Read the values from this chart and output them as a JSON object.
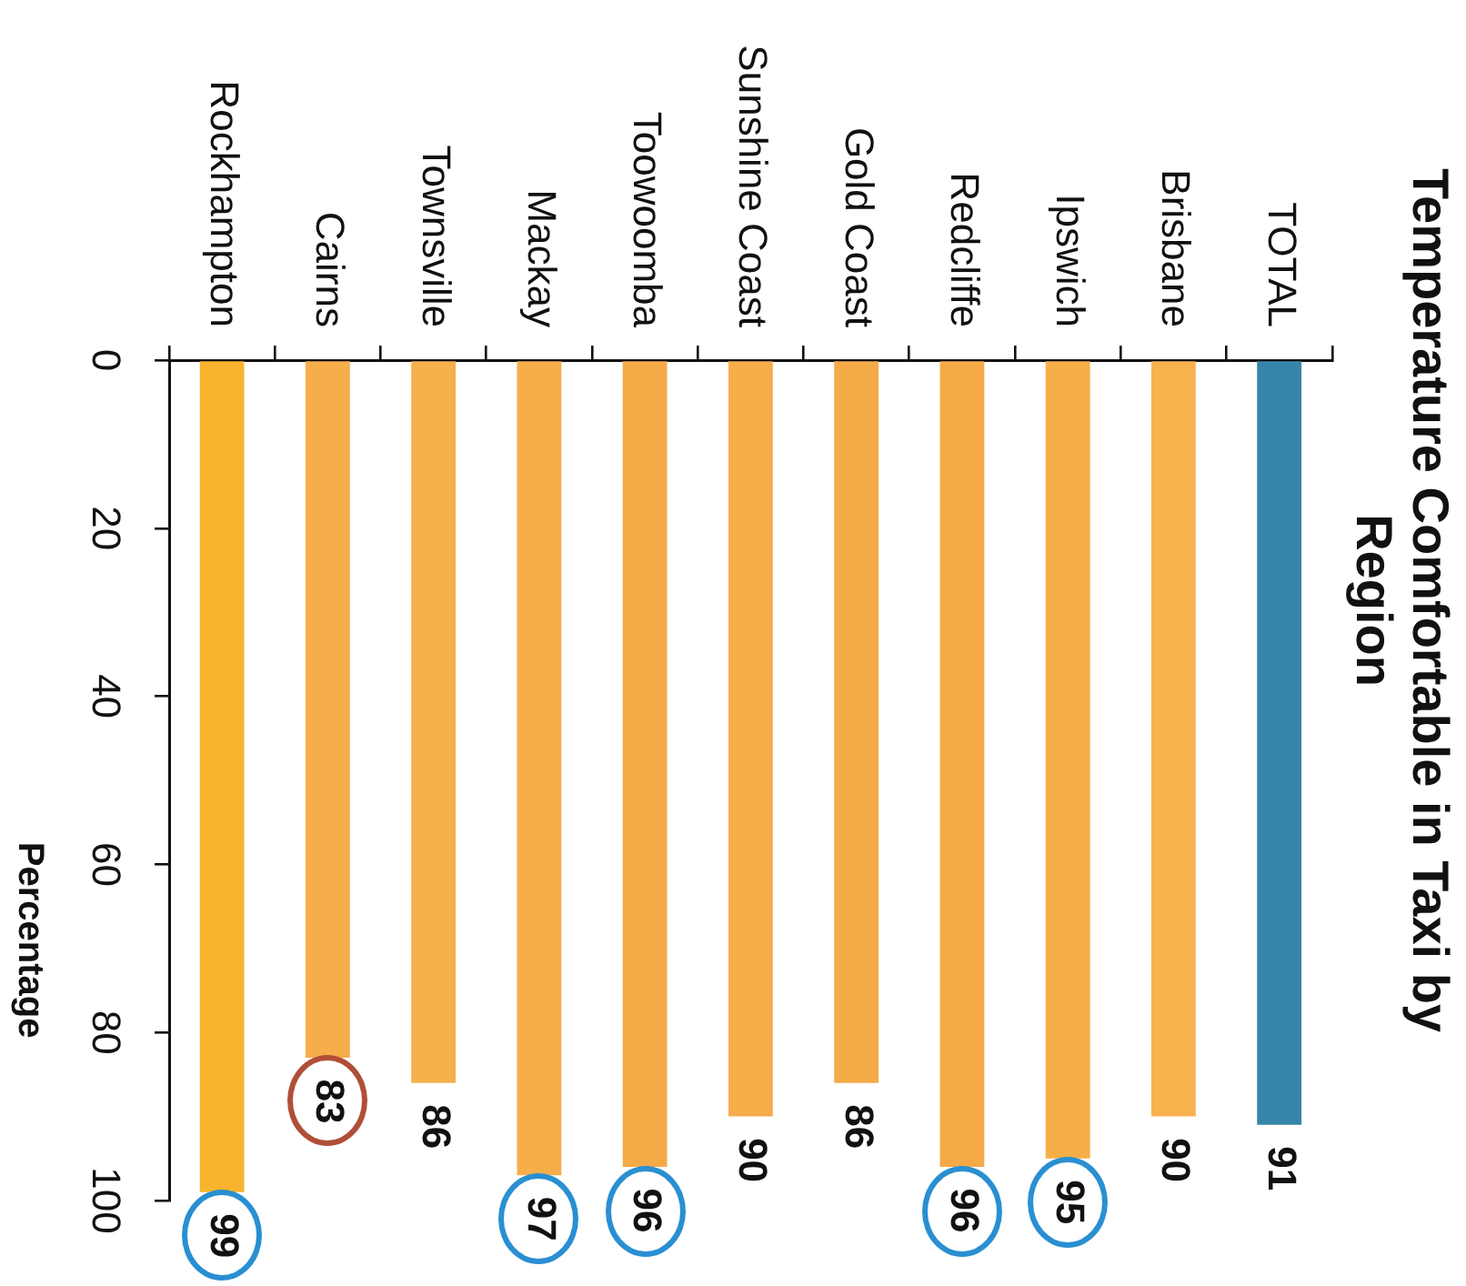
{
  "chart_data": {
    "type": "bar",
    "title": "Temperature Comfortable in Taxi by Region",
    "ylabel": "Percentage",
    "categories": [
      "Rockhampton",
      "Cairns",
      "Townsville",
      "Mackay",
      "Toowoomba",
      "Sunshine Coast",
      "Gold Coast",
      "Redcliffe",
      "Ipswich",
      "Brisbane",
      "TOTAL"
    ],
    "values": [
      99,
      83,
      86,
      97,
      96,
      90,
      86,
      96,
      95,
      90,
      91
    ],
    "colors": [
      "#f9b42f",
      "#f6ad4c",
      "#f6b04c",
      "#f6ae4a",
      "#f5aa48",
      "#f6ad4a",
      "#f5ab48",
      "#f5aa47",
      "#f6ae48",
      "#f7b24d",
      "#3786a9"
    ],
    "ylim": [
      100,
      0
    ],
    "yticks": [
      0,
      20,
      40,
      60,
      80,
      100
    ],
    "data_labels": true
  }
}
